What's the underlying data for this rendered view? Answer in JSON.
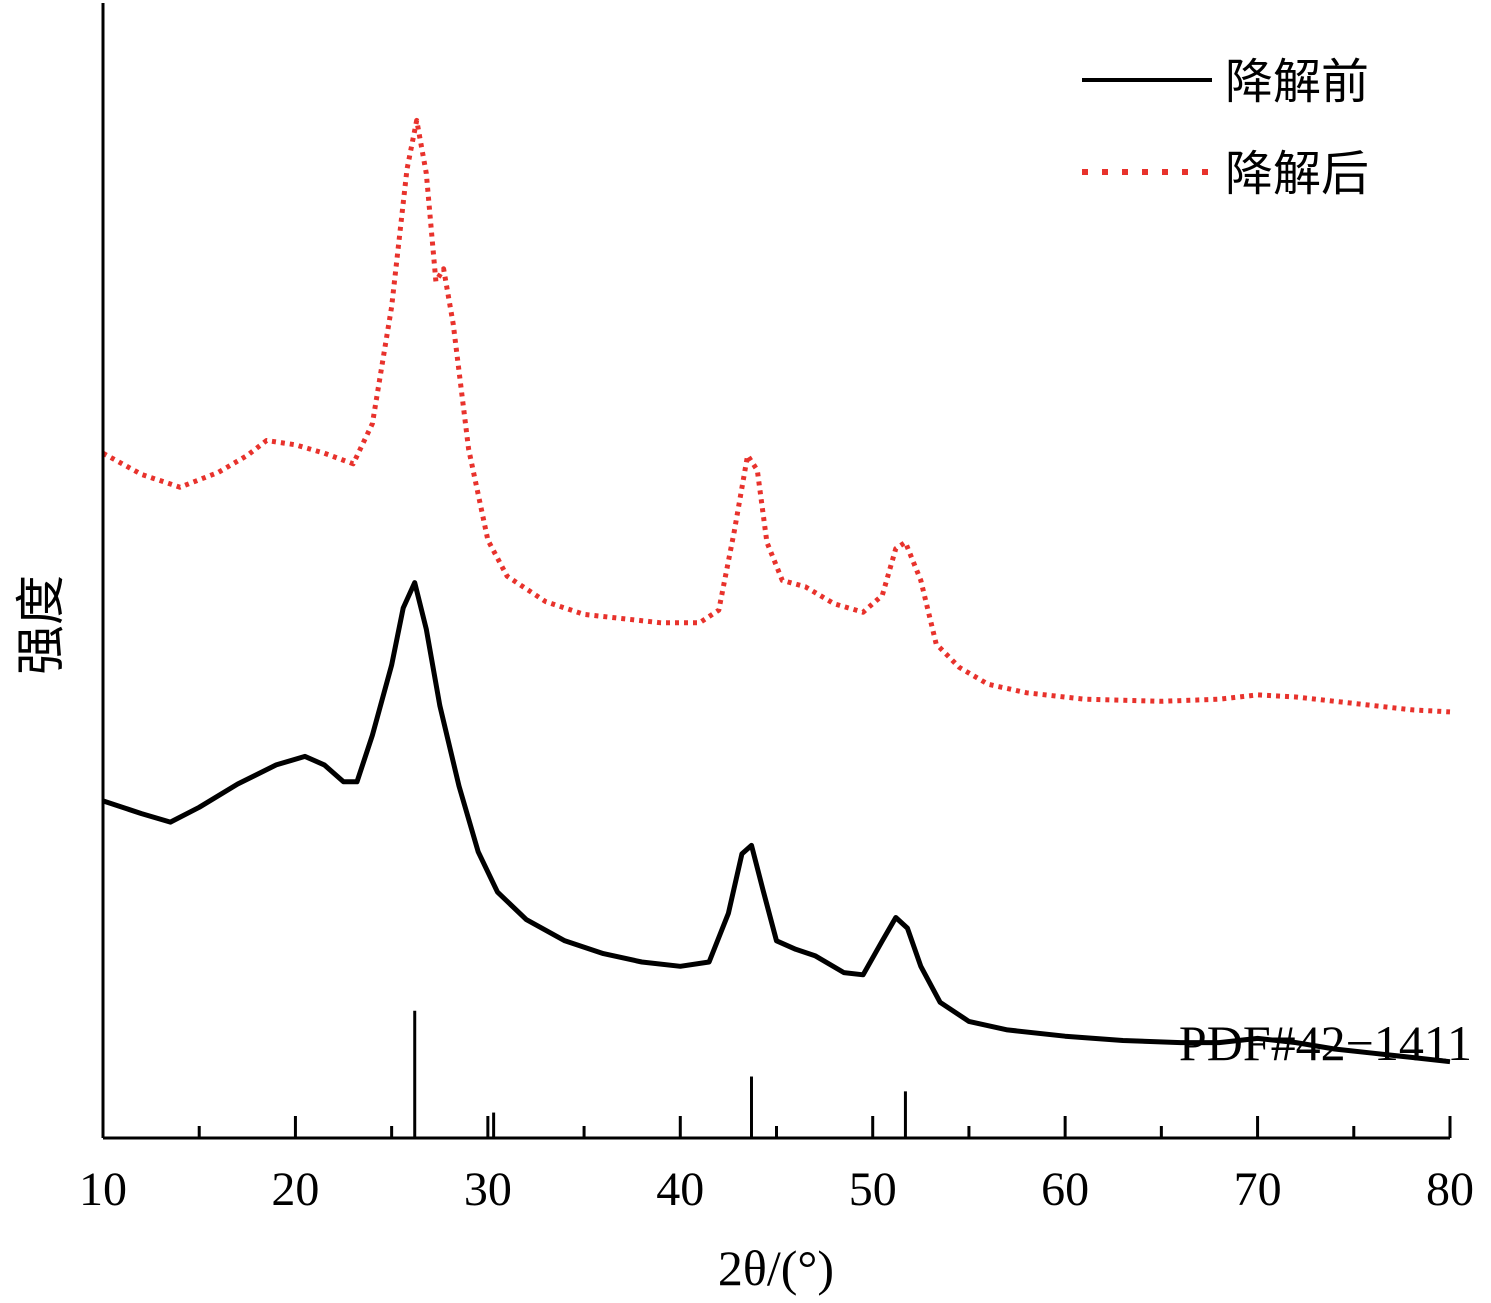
{
  "chart_data": {
    "type": "line",
    "xlabel": "2θ/(°)",
    "ylabel": "强度",
    "xlim": [
      10,
      80
    ],
    "xticks": [
      10,
      20,
      30,
      40,
      50,
      60,
      70,
      80
    ],
    "y_ticks_shown": false,
    "grid": false,
    "legend_position": "top-right",
    "series": [
      {
        "name": "降解前",
        "style": "solid",
        "color": "#000000",
        "x": [
          10,
          12,
          13.5,
          15,
          17,
          19,
          20.5,
          21.5,
          22.5,
          23.2,
          24,
          25,
          25.6,
          26.2,
          26.8,
          27.5,
          28.5,
          29.5,
          30.5,
          32,
          34,
          36,
          38,
          40,
          41.5,
          42.5,
          43.2,
          43.7,
          44.3,
          45,
          46,
          47,
          48.5,
          49.5,
          50.5,
          51.2,
          51.8,
          52.5,
          53.5,
          55,
          57,
          60,
          63,
          66,
          68,
          70,
          72,
          74,
          76,
          78,
          80
        ],
        "values": [
          15.9,
          15.3,
          14.9,
          15.6,
          16.7,
          17.6,
          18.0,
          17.6,
          16.8,
          16.8,
          19.0,
          22.3,
          25.0,
          26.2,
          24.0,
          20.4,
          16.6,
          13.5,
          11.6,
          10.3,
          9.3,
          8.7,
          8.3,
          8.1,
          8.3,
          10.6,
          13.4,
          13.8,
          11.7,
          9.3,
          8.9,
          8.6,
          7.8,
          7.7,
          9.3,
          10.4,
          9.9,
          8.1,
          6.4,
          5.5,
          5.1,
          4.8,
          4.6,
          4.5,
          4.5,
          4.7,
          4.5,
          4.2,
          4.0,
          3.8,
          3.6
        ]
      },
      {
        "name": "降解后",
        "style": "dotted",
        "color": "#e8322c",
        "x": [
          10,
          12,
          14,
          16,
          17.5,
          18.5,
          20,
          21.5,
          23,
          24,
          25,
          25.8,
          26.3,
          26.8,
          27.3,
          27.7,
          28.2,
          29,
          30,
          31,
          33,
          35,
          37,
          39,
          41,
          42,
          42.8,
          43.5,
          44,
          44.5,
          45.3,
          46.5,
          48,
          49.5,
          50.5,
          51.2,
          51.7,
          52.5,
          53.3,
          54.5,
          56,
          58,
          61,
          65,
          68,
          70,
          72,
          75,
          78,
          80
        ],
        "values": [
          32.3,
          31.3,
          30.7,
          31.4,
          32.2,
          32.9,
          32.7,
          32.3,
          31.8,
          33.7,
          39.2,
          45.7,
          48.0,
          45.5,
          40.4,
          41.0,
          38.4,
          32.5,
          28.2,
          26.5,
          25.3,
          24.7,
          24.5,
          24.3,
          24.3,
          24.9,
          28.6,
          32.2,
          31.5,
          28.1,
          26.3,
          26.0,
          25.2,
          24.8,
          25.6,
          27.8,
          28.1,
          26.3,
          23.3,
          22.2,
          21.4,
          21.0,
          20.7,
          20.6,
          20.7,
          20.9,
          20.8,
          20.5,
          20.2,
          20.1
        ]
      }
    ],
    "reference": {
      "label": "PDF#42−1411",
      "peaks_x": [
        26.2,
        30.3,
        43.7,
        51.7
      ],
      "peaks_height": [
        6.0,
        1.2,
        2.9,
        2.2
      ]
    }
  }
}
